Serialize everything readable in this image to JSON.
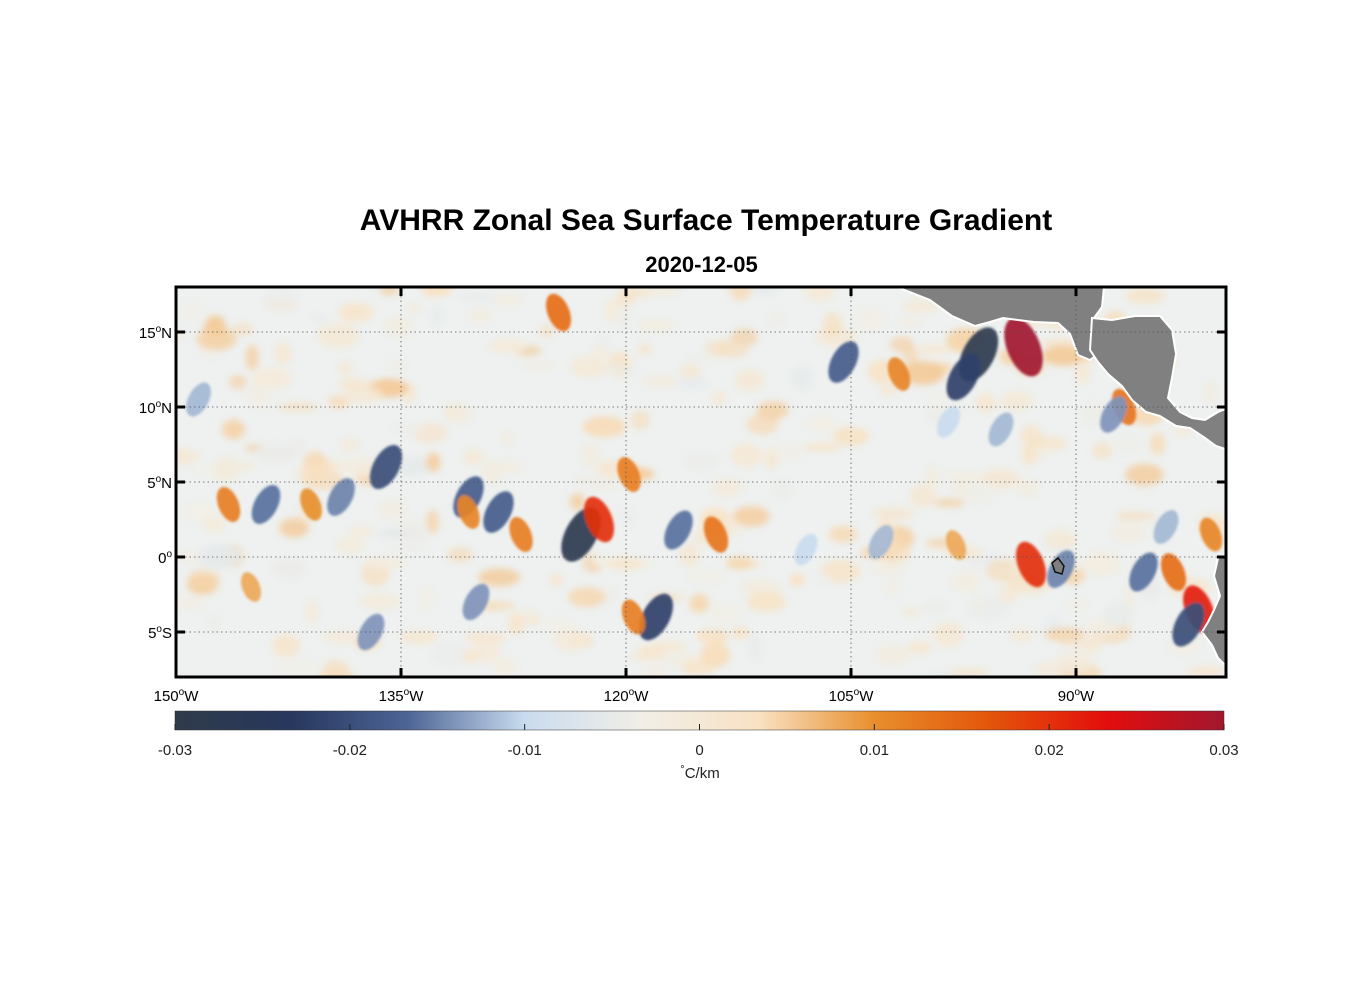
{
  "title": "AVHRR Zonal Sea Surface Temperature Gradient",
  "subtitle": "2020-12-05",
  "map": {
    "lon_range": [
      -150,
      -80
    ],
    "lat_range": [
      -8,
      18
    ],
    "lon_ticks": [
      {
        "value": -150,
        "deg": "150",
        "hemi": "W"
      },
      {
        "value": -135,
        "deg": "135",
        "hemi": "W"
      },
      {
        "value": -120,
        "deg": "120",
        "hemi": "W"
      },
      {
        "value": -105,
        "deg": "105",
        "hemi": "W"
      },
      {
        "value": -90,
        "deg": "90",
        "hemi": "W"
      }
    ],
    "lat_ticks": [
      {
        "value": 15,
        "deg": "15",
        "hemi": "N"
      },
      {
        "value": 10,
        "deg": "10",
        "hemi": "N"
      },
      {
        "value": 5,
        "deg": "5",
        "hemi": "N"
      },
      {
        "value": 0,
        "deg": "0",
        "hemi": ""
      },
      {
        "value": -5,
        "deg": "5",
        "hemi": "S"
      }
    ],
    "grid": true,
    "land_color": "#808080"
  },
  "colorbar": {
    "range": [
      -0.03,
      0.03
    ],
    "tick_labels": [
      "-0.03",
      "-0.02",
      "-0.01",
      "0",
      "0.01",
      "0.02",
      "0.03"
    ],
    "tick_values": [
      -0.03,
      -0.02,
      -0.01,
      0,
      0.01,
      0.02,
      0.03
    ],
    "unit_prefix": "°",
    "unit_label": "C/km",
    "colors": [
      "#2f3b4a",
      "#27375e",
      "#4d6596",
      "#c9dbef",
      "#f1efe7",
      "#f8e2c4",
      "#e88f2c",
      "#e3550a",
      "#e30d0d",
      "#a1172f"
    ]
  },
  "chart_data": {
    "type": "heatmap",
    "title": "AVHRR Zonal Sea Surface Temperature Gradient",
    "subtitle": "2020-12-05",
    "variable": "zonal SST gradient",
    "unit": "°C/km",
    "clim": [
      -0.03,
      0.03
    ],
    "x_range": [
      -150,
      -80
    ],
    "y_range": [
      -8,
      18
    ],
    "features": [
      {
        "lon": -96.5,
        "lat": 13.5,
        "value": -0.028
      },
      {
        "lon": -93.5,
        "lat": 14.0,
        "value": 0.03
      },
      {
        "lon": -97.5,
        "lat": 12.0,
        "value": -0.022
      },
      {
        "lon": -101.8,
        "lat": 12.2,
        "value": 0.011
      },
      {
        "lon": -105.5,
        "lat": 13.0,
        "value": -0.018
      },
      {
        "lon": -86.8,
        "lat": 10.0,
        "value": 0.013
      },
      {
        "lon": -87.5,
        "lat": 9.5,
        "value": -0.014
      },
      {
        "lon": -123.0,
        "lat": 1.5,
        "value": -0.028
      },
      {
        "lon": -121.8,
        "lat": 2.5,
        "value": 0.02
      },
      {
        "lon": -114.0,
        "lat": 1.5,
        "value": 0.013
      },
      {
        "lon": -127.0,
        "lat": 1.5,
        "value": 0.012
      },
      {
        "lon": -128.5,
        "lat": 3.0,
        "value": -0.018
      },
      {
        "lon": -130.5,
        "lat": 4.0,
        "value": -0.018
      },
      {
        "lon": -130.5,
        "lat": 3.0,
        "value": 0.011
      },
      {
        "lon": -118.0,
        "lat": -4.0,
        "value": -0.022
      },
      {
        "lon": -119.5,
        "lat": -4.0,
        "value": 0.012
      },
      {
        "lon": -146.5,
        "lat": 3.5,
        "value": 0.012
      },
      {
        "lon": -144.0,
        "lat": 3.5,
        "value": -0.016
      },
      {
        "lon": -139.0,
        "lat": 4.0,
        "value": -0.015
      },
      {
        "lon": -141.0,
        "lat": 3.5,
        "value": 0.01
      },
      {
        "lon": -136.0,
        "lat": 6.0,
        "value": -0.02
      },
      {
        "lon": -124.5,
        "lat": 16.3,
        "value": 0.014
      },
      {
        "lon": -119.8,
        "lat": 5.5,
        "value": 0.012
      },
      {
        "lon": -116.5,
        "lat": 1.8,
        "value": -0.016
      },
      {
        "lon": -91.0,
        "lat": -0.8,
        "value": -0.015
      },
      {
        "lon": -93.0,
        "lat": -0.5,
        "value": 0.02
      },
      {
        "lon": -83.5,
        "lat": -1.0,
        "value": 0.014
      },
      {
        "lon": -85.5,
        "lat": -1.0,
        "value": -0.016
      },
      {
        "lon": -81.8,
        "lat": -3.5,
        "value": 0.022
      },
      {
        "lon": -82.5,
        "lat": -4.5,
        "value": -0.02
      },
      {
        "lon": -81.0,
        "lat": 1.5,
        "value": 0.011
      },
      {
        "lon": -84.0,
        "lat": 2.0,
        "value": -0.012
      },
      {
        "lon": -103.0,
        "lat": 1.0,
        "value": -0.012
      },
      {
        "lon": -98.0,
        "lat": 0.8,
        "value": 0.008
      },
      {
        "lon": -108.0,
        "lat": 0.5,
        "value": -0.01
      },
      {
        "lon": -137.0,
        "lat": -5.0,
        "value": -0.014
      },
      {
        "lon": -145.0,
        "lat": -2.0,
        "value": 0.008
      },
      {
        "lon": -148.5,
        "lat": 10.5,
        "value": -0.012
      },
      {
        "lon": -98.5,
        "lat": 9.0,
        "value": -0.01
      },
      {
        "lon": -95.0,
        "lat": 8.5,
        "value": -0.012
      },
      {
        "lon": -130.0,
        "lat": -3.0,
        "value": -0.014
      }
    ]
  }
}
